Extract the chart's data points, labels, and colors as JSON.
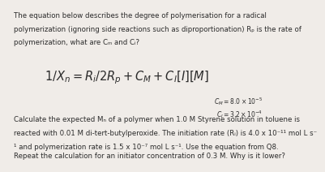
{
  "background_color": "#f0ece8",
  "text_color": "#2b2b2b",
  "body_fontsize": 6.2,
  "eq_fontsize": 10.5,
  "ann_fontsize": 5.5,
  "para1": [
    "The equation below describes the degree of polymerisation for a radical",
    "polymerization (ignoring side reactions such as diproportionation) Rₚ is the rate of",
    "polymerization, what are Cₘ and Cᵢ?"
  ],
  "eq_latex": "$1/X_n = R_i/2R_p + C_M + C_I[I][M]$",
  "cm_latex": "$C_M = 8.0\\times10^{-5}$",
  "ci_latex": "$C_I = 3.2\\times10^{-4}$",
  "para2": [
    "Calculate the expected Mₙ of a polymer when 1.0 M Styrene solution in toluene is",
    "reacted with 0.01 M di-tert-butylperoxide. The initiation rate (Rᵢ) is 4.0 x 10⁻¹¹ mol L s⁻",
    "¹ and polymerization rate is 1.5 x 10⁻⁷ mol L s⁻¹. Use the equation from Q8."
  ],
  "para3": "Repeat the calculation for an initiator concentration of 0.3 M. Why is it lower?"
}
